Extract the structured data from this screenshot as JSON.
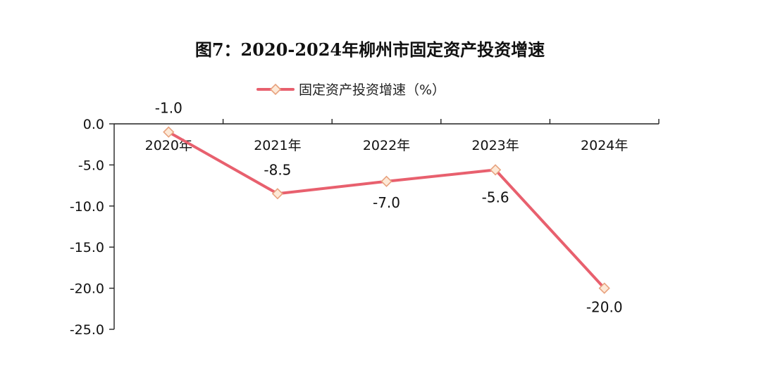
{
  "chart_data": {
    "type": "line",
    "title": "图7：2020-2024年柳州市固定资产投资增速",
    "categories": [
      "2020年",
      "2021年",
      "2022年",
      "2023年",
      "2024年"
    ],
    "series": [
      {
        "name": "固定资产投资增速（%）",
        "values": [
          -1.0,
          -8.5,
          -7.0,
          -5.6,
          -20.0
        ],
        "labels": [
          "-1.0",
          "-8.5",
          "-7.0",
          "-5.6",
          "-20.0"
        ]
      }
    ],
    "yticks": [
      "0.0",
      "-5.0",
      "-10.0",
      "-15.0",
      "-20.0",
      "-25.0"
    ],
    "ylim": [
      -25,
      0
    ],
    "legend_position": "top-center",
    "grid": false,
    "colors": {
      "line": "#e8606e",
      "marker_fill": "#fde9d7",
      "marker_stroke": "#e8a27e"
    }
  }
}
